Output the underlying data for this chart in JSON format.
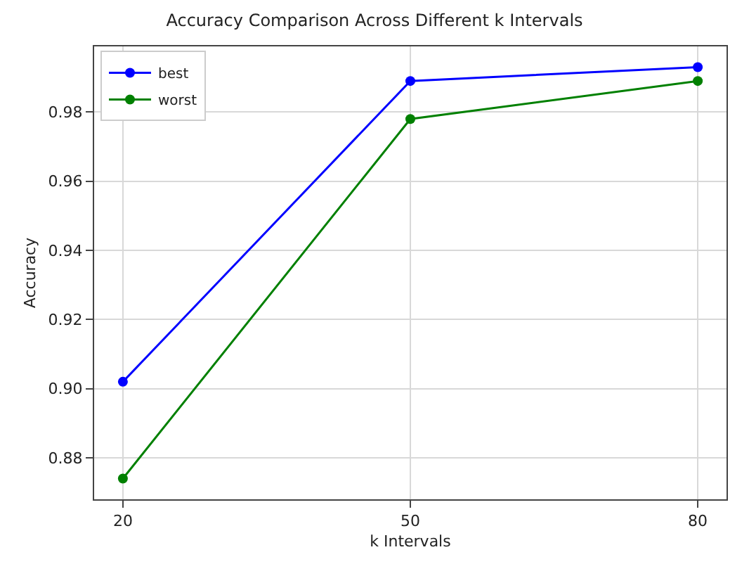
{
  "chart_data": {
    "type": "line",
    "title": "Accuracy Comparison Across Different k Intervals",
    "xlabel": "k Intervals",
    "ylabel": "Accuracy",
    "x": [
      20,
      50,
      80
    ],
    "series": [
      {
        "name": "best",
        "color": "#0000ff",
        "values": [
          0.902,
          0.989,
          0.993
        ]
      },
      {
        "name": "worst",
        "color": "#008000",
        "values": [
          0.874,
          0.978,
          0.989
        ]
      }
    ],
    "xlim": [
      17,
      83
    ],
    "xticks": [
      20,
      50,
      80
    ],
    "ylim": [
      0.868,
      0.999
    ],
    "yticks": [
      {
        "value": 0.88,
        "label": "0.88"
      },
      {
        "value": 0.9,
        "label": "0.90"
      },
      {
        "value": 0.92,
        "label": "0.92"
      },
      {
        "value": 0.94,
        "label": "0.94"
      },
      {
        "value": 0.96,
        "label": "0.96"
      },
      {
        "value": 0.98,
        "label": "0.98"
      }
    ],
    "grid": true,
    "legend": "top left",
    "marker": "circle",
    "line_style": "solid"
  }
}
